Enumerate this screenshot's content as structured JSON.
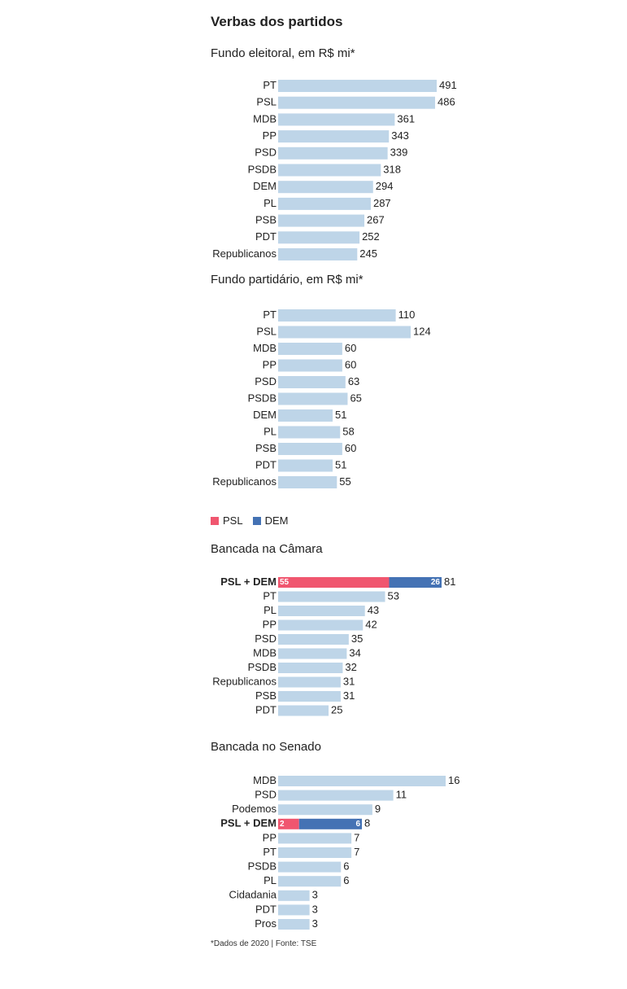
{
  "title": "Verbas dos partidos",
  "footer": "*Dados de 2020 | Fonte: TSE",
  "colors": {
    "bar": "#bed5e8",
    "psl": "#f0566f",
    "dem": "#4472b4",
    "text": "#222222"
  },
  "legend": {
    "psl_label": "PSL",
    "dem_label": "DEM"
  },
  "chart_data": [
    {
      "type": "bar",
      "orientation": "horizontal",
      "title": "Fundo eleitoral, em R$ mi*",
      "categories": [
        "PT",
        "PSL",
        "MDB",
        "PP",
        "PSD",
        "PSDB",
        "DEM",
        "PL",
        "PSB",
        "PDT",
        "Republicanos"
      ],
      "values": [
        491,
        486,
        361,
        343,
        339,
        318,
        294,
        287,
        267,
        252,
        245
      ]
    },
    {
      "type": "bar",
      "orientation": "horizontal",
      "title": "Fundo partidário, em R$ mi*",
      "categories": [
        "PT",
        "PSL",
        "MDB",
        "PP",
        "PSD",
        "PSDB",
        "DEM",
        "PL",
        "PSB",
        "PDT",
        "Republicanos"
      ],
      "values": [
        110,
        124,
        60,
        60,
        63,
        65,
        51,
        58,
        60,
        51,
        55
      ]
    },
    {
      "type": "bar",
      "orientation": "horizontal",
      "stacked_row": "PSL + DEM",
      "title": "Bancada na Câmara",
      "categories": [
        "PSL + DEM",
        "PT",
        "PL",
        "PP",
        "PSD",
        "MDB",
        "PSDB",
        "Republicanos",
        "PSB",
        "PDT"
      ],
      "values": [
        81,
        53,
        43,
        42,
        35,
        34,
        32,
        31,
        31,
        25
      ],
      "stack": {
        "PSL": 55,
        "DEM": 26
      }
    },
    {
      "type": "bar",
      "orientation": "horizontal",
      "stacked_row": "PSL + DEM",
      "title": "Bancada no Senado",
      "categories": [
        "MDB",
        "PSD",
        "Podemos",
        "PSL + DEM",
        "PP",
        "PT",
        "PSDB",
        "PL",
        "Cidadania",
        "PDT",
        "Pros"
      ],
      "values": [
        16,
        11,
        9,
        8,
        7,
        7,
        6,
        6,
        3,
        3,
        3
      ],
      "stack": {
        "PSL": 2,
        "DEM": 6
      }
    }
  ]
}
